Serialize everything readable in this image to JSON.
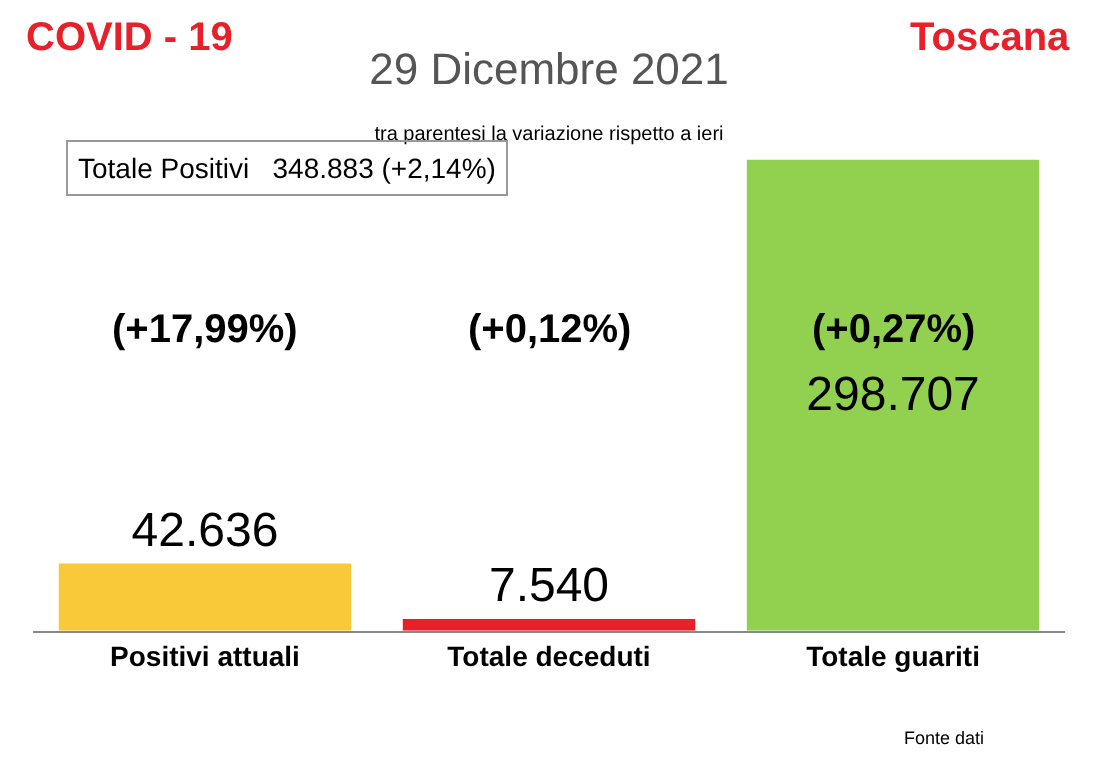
{
  "chart_data": {
    "type": "bar",
    "title": "29 Dicembre 2021",
    "subtitle": "tra parentesi la variazione rispetto a ieri",
    "categories": [
      "Positivi attuali",
      "Totale deceduti",
      "Totale guariti"
    ],
    "values": [
      42636,
      7540,
      298707
    ],
    "colors": [
      "#f9c93a",
      "#e8202a",
      "#92d050"
    ],
    "value_labels": [
      "42.636",
      "7.540",
      "298.707"
    ],
    "annotations": [
      "COVID - 19",
      "Toscana",
      "Totale Positivi   348.883 (+2,14%)",
      "Fonte dati",
      "(+17,99%)",
      "(+0,12%)",
      "(+0,27%)"
    ]
  }
}
